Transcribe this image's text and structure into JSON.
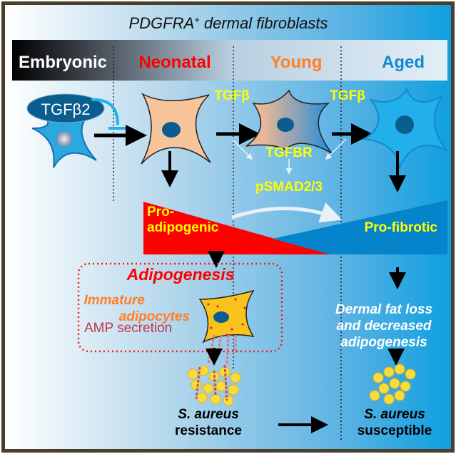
{
  "title": "PDGFRA",
  "title_sup": "+",
  "title_rest": " dermal fibroblasts",
  "stages": [
    {
      "label": "Embryonic",
      "color": "#ffffff"
    },
    {
      "label": "Neonatal",
      "color": "#ff0000"
    },
    {
      "label": "Young",
      "color": "#ff7f27"
    },
    {
      "label": "Aged",
      "color": "#1089d0"
    }
  ],
  "ligand_embryonic": "TGFβ2",
  "signal_1": "TGFβ",
  "signal_2": "TGFβ",
  "receptor": "TGFBR",
  "effector": "pSMAD2/3",
  "pro_adipogenic_1": "Pro-",
  "pro_adipogenic_2": "adipogenic",
  "pro_fibrotic": "Pro-fibrotic",
  "adipogenesis": "Adipogenesis",
  "immature_1": "Immature",
  "immature_2": "adipocytes",
  "amp": "AMP secretion",
  "aged_outcome": [
    "Dermal fat loss",
    "and decreased",
    "adipogenesis"
  ],
  "resistance_1": "S. aureus",
  "resistance_2": "resistance",
  "susceptible_1": "S. aureus",
  "susceptible_2": "susceptible",
  "colors": {
    "yellow": "#ffff00",
    "red": "#ff0000",
    "blue": "#0a84cc",
    "orange": "#ff7f27"
  }
}
